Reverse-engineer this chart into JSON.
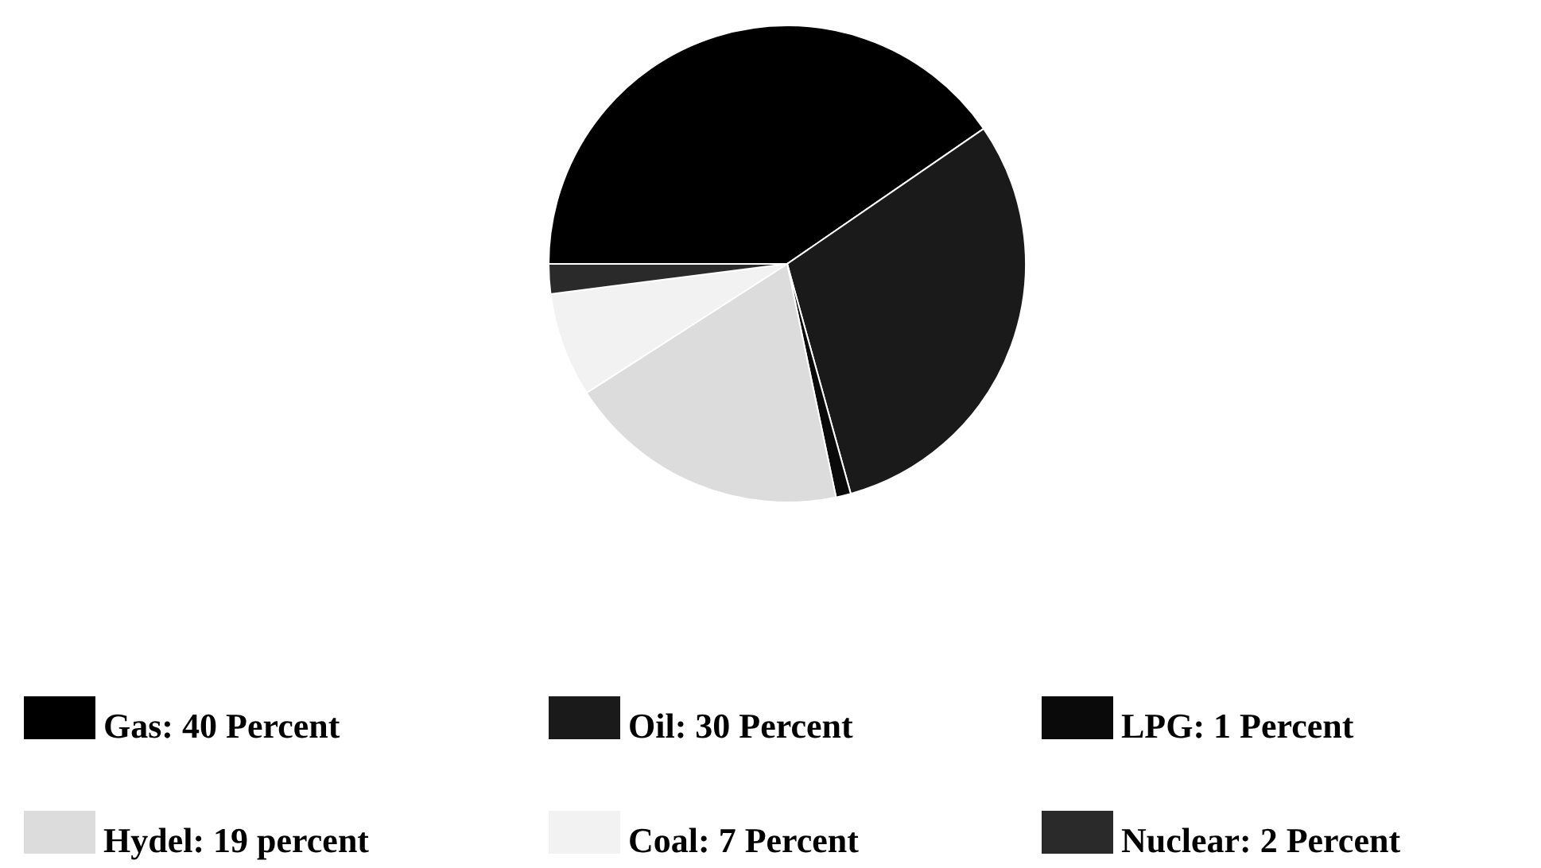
{
  "chart_data": {
    "type": "pie",
    "categories": [
      "Gas: 40 Percent",
      "Oil: 30 Percent",
      "LPG: 1 Percent",
      "Hydel: 19 percent",
      "Coal: 7 Percent",
      "Nuclear: 2 Percent"
    ],
    "values": [
      40,
      30,
      1,
      19,
      7,
      2
    ],
    "colors": [
      "#000000",
      "#1a1a1a",
      "#0a0a0a",
      "#dcdcdc",
      "#f2f2f2",
      "#2a2a2a"
    ],
    "legend": "bottom"
  }
}
